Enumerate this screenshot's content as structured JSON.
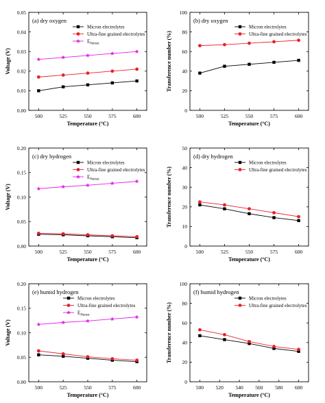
{
  "figure": {
    "colors": {
      "black": "#000000",
      "red": "#e8202a",
      "magenta": "#e020e8"
    },
    "ylabels": {
      "voltage": "Voltage (V)",
      "transference": "Transference number (%)"
    },
    "xlabel": "Temperature (°C)"
  },
  "chart_data": [
    {
      "type": "line",
      "title": "(a) dry oxygen",
      "xlabel": "Temperature (°C)",
      "ylabel": "Voltage (V)",
      "x": [
        500,
        525,
        550,
        575,
        600
      ],
      "xlim": [
        490,
        610
      ],
      "ylim": [
        0,
        0.05
      ],
      "yticks": [
        "0.00",
        "0.01",
        "0.02",
        "0.03",
        "0.04",
        "0.05"
      ],
      "legend_position": "top-right",
      "series": [
        {
          "name": "Micron electrolytes",
          "values": [
            0.01,
            0.012,
            0.013,
            0.014,
            0.015
          ],
          "color": "#000000",
          "marker": "square"
        },
        {
          "name": "Ultra-fine grained electrolytes",
          "values": [
            0.017,
            0.018,
            0.019,
            0.02,
            0.021
          ],
          "color": "#e8202a",
          "marker": "circle"
        },
        {
          "name": "E",
          "name_sub": "Nernst",
          "values": [
            0.026,
            0.027,
            0.028,
            0.029,
            0.03
          ],
          "color": "#e020e8",
          "marker": "star"
        }
      ]
    },
    {
      "type": "line",
      "title": "(b) dry oxygen",
      "xlabel": "Temperature (°C)",
      "ylabel": "Transference number (%)",
      "x": [
        500,
        525,
        550,
        575,
        600
      ],
      "xlim": [
        490,
        610
      ],
      "ylim": [
        0,
        100
      ],
      "yticks": [
        "0",
        "20",
        "40",
        "60",
        "80",
        "100"
      ],
      "legend_position": "top-right",
      "series": [
        {
          "name": "Micron electrolytes",
          "values": [
            38,
            45,
            47,
            49,
            51
          ],
          "color": "#000000",
          "marker": "square"
        },
        {
          "name": "Ultra-fine grained electrolytes",
          "values": [
            66,
            67,
            68.5,
            70,
            71.5
          ],
          "color": "#e8202a",
          "marker": "circle"
        }
      ]
    },
    {
      "type": "line",
      "title": "(c) dry hydrogen",
      "xlabel": "Temperature (°C)",
      "ylabel": "Voltage (V)",
      "x": [
        500,
        525,
        550,
        575,
        600
      ],
      "xlim": [
        490,
        610
      ],
      "ylim": [
        0,
        0.2
      ],
      "yticks": [
        "0.00",
        "0.05",
        "0.10",
        "0.15",
        "0.20"
      ],
      "legend_position": "top-right",
      "series": [
        {
          "name": "Micron electrolytes",
          "values": [
            0.024,
            0.023,
            0.021,
            0.019,
            0.017
          ],
          "color": "#000000",
          "marker": "square"
        },
        {
          "name": "Ultra-fine grained electrolytes",
          "values": [
            0.026,
            0.025,
            0.023,
            0.021,
            0.019
          ],
          "color": "#e8202a",
          "marker": "circle"
        },
        {
          "name": "E",
          "name_sub": "Nernst",
          "values": [
            0.117,
            0.121,
            0.124,
            0.128,
            0.132
          ],
          "color": "#e020e8",
          "marker": "star"
        }
      ]
    },
    {
      "type": "line",
      "title": "(d) dry hydrogen",
      "xlabel": "Temperature (°C)",
      "ylabel": "Transference number (%)",
      "x": [
        500,
        525,
        550,
        575,
        600
      ],
      "xlim": [
        490,
        610
      ],
      "ylim": [
        0,
        50
      ],
      "yticks": [
        "0",
        "10",
        "20",
        "30",
        "40",
        "50"
      ],
      "legend_position": "top-right",
      "series": [
        {
          "name": "Micron electrolytes",
          "values": [
            21,
            19,
            16.5,
            14.5,
            13
          ],
          "color": "#000000",
          "marker": "square"
        },
        {
          "name": "Ultra-fine grained electrolytes",
          "values": [
            22.5,
            21,
            19,
            17,
            15
          ],
          "color": "#e8202a",
          "marker": "circle"
        }
      ]
    },
    {
      "type": "line",
      "title": "(e) humid hydrogen",
      "xlabel": "Temperature (°C)",
      "ylabel": "Voltage (V)",
      "x": [
        500,
        525,
        550,
        575,
        600
      ],
      "xlim": [
        490,
        610
      ],
      "ylim": [
        0,
        0.2
      ],
      "yticks": [
        "0.00",
        "0.05",
        "0.10",
        "0.15",
        "0.20"
      ],
      "legend_position": "top-left",
      "series": [
        {
          "name": "Micron electrolytes",
          "values": [
            0.055,
            0.052,
            0.048,
            0.044,
            0.041
          ],
          "color": "#000000",
          "marker": "square"
        },
        {
          "name": "Ultra-fine grained electrolytes",
          "values": [
            0.063,
            0.057,
            0.051,
            0.047,
            0.044
          ],
          "color": "#e8202a",
          "marker": "circle"
        },
        {
          "name": "E",
          "name_sub": "Nernst",
          "values": [
            0.117,
            0.121,
            0.124,
            0.128,
            0.132
          ],
          "color": "#e020e8",
          "marker": "star"
        }
      ]
    },
    {
      "type": "line",
      "title": "(f) humid hydrogen",
      "xlabel": "Temperature (°C)",
      "ylabel": "Transference number (%)",
      "x": [
        500,
        525,
        550,
        575,
        600
      ],
      "xlim": [
        490,
        610
      ],
      "ylim": [
        0,
        100
      ],
      "yticks": [
        "0",
        "20",
        "40",
        "60",
        "80",
        "100"
      ],
      "xticks": [
        "500",
        "520",
        "540",
        "560",
        "580",
        "600"
      ],
      "legend_position": "top-right",
      "series": [
        {
          "name": "Micron electrolytes",
          "values": [
            47,
            43,
            39,
            34,
            31
          ],
          "color": "#000000",
          "marker": "square"
        },
        {
          "name": "Ultra-fine grained electrolytes",
          "values": [
            53,
            48,
            41,
            36,
            33
          ],
          "color": "#e8202a",
          "marker": "circle"
        }
      ]
    }
  ]
}
